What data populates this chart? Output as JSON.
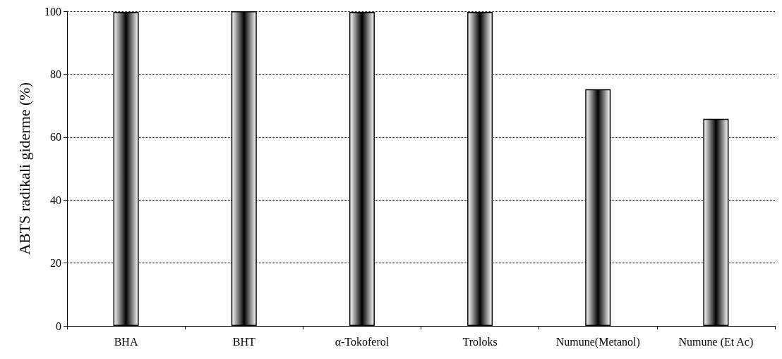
{
  "chart_data": {
    "type": "bar",
    "ylabel": "ABTS radikali giderme (%)",
    "categories": [
      "BHA",
      "BHT",
      "α-Tokoferol",
      "Troloks",
      "Numune(Metanol)",
      "Numune (Et Ac)"
    ],
    "values": [
      99.8,
      100,
      99.8,
      99.8,
      75.2,
      65.8
    ],
    "color": "#000000",
    "ylim": [
      0,
      100
    ],
    "yticks": [
      0,
      20,
      40,
      60,
      80,
      100
    ],
    "grid": "y"
  }
}
